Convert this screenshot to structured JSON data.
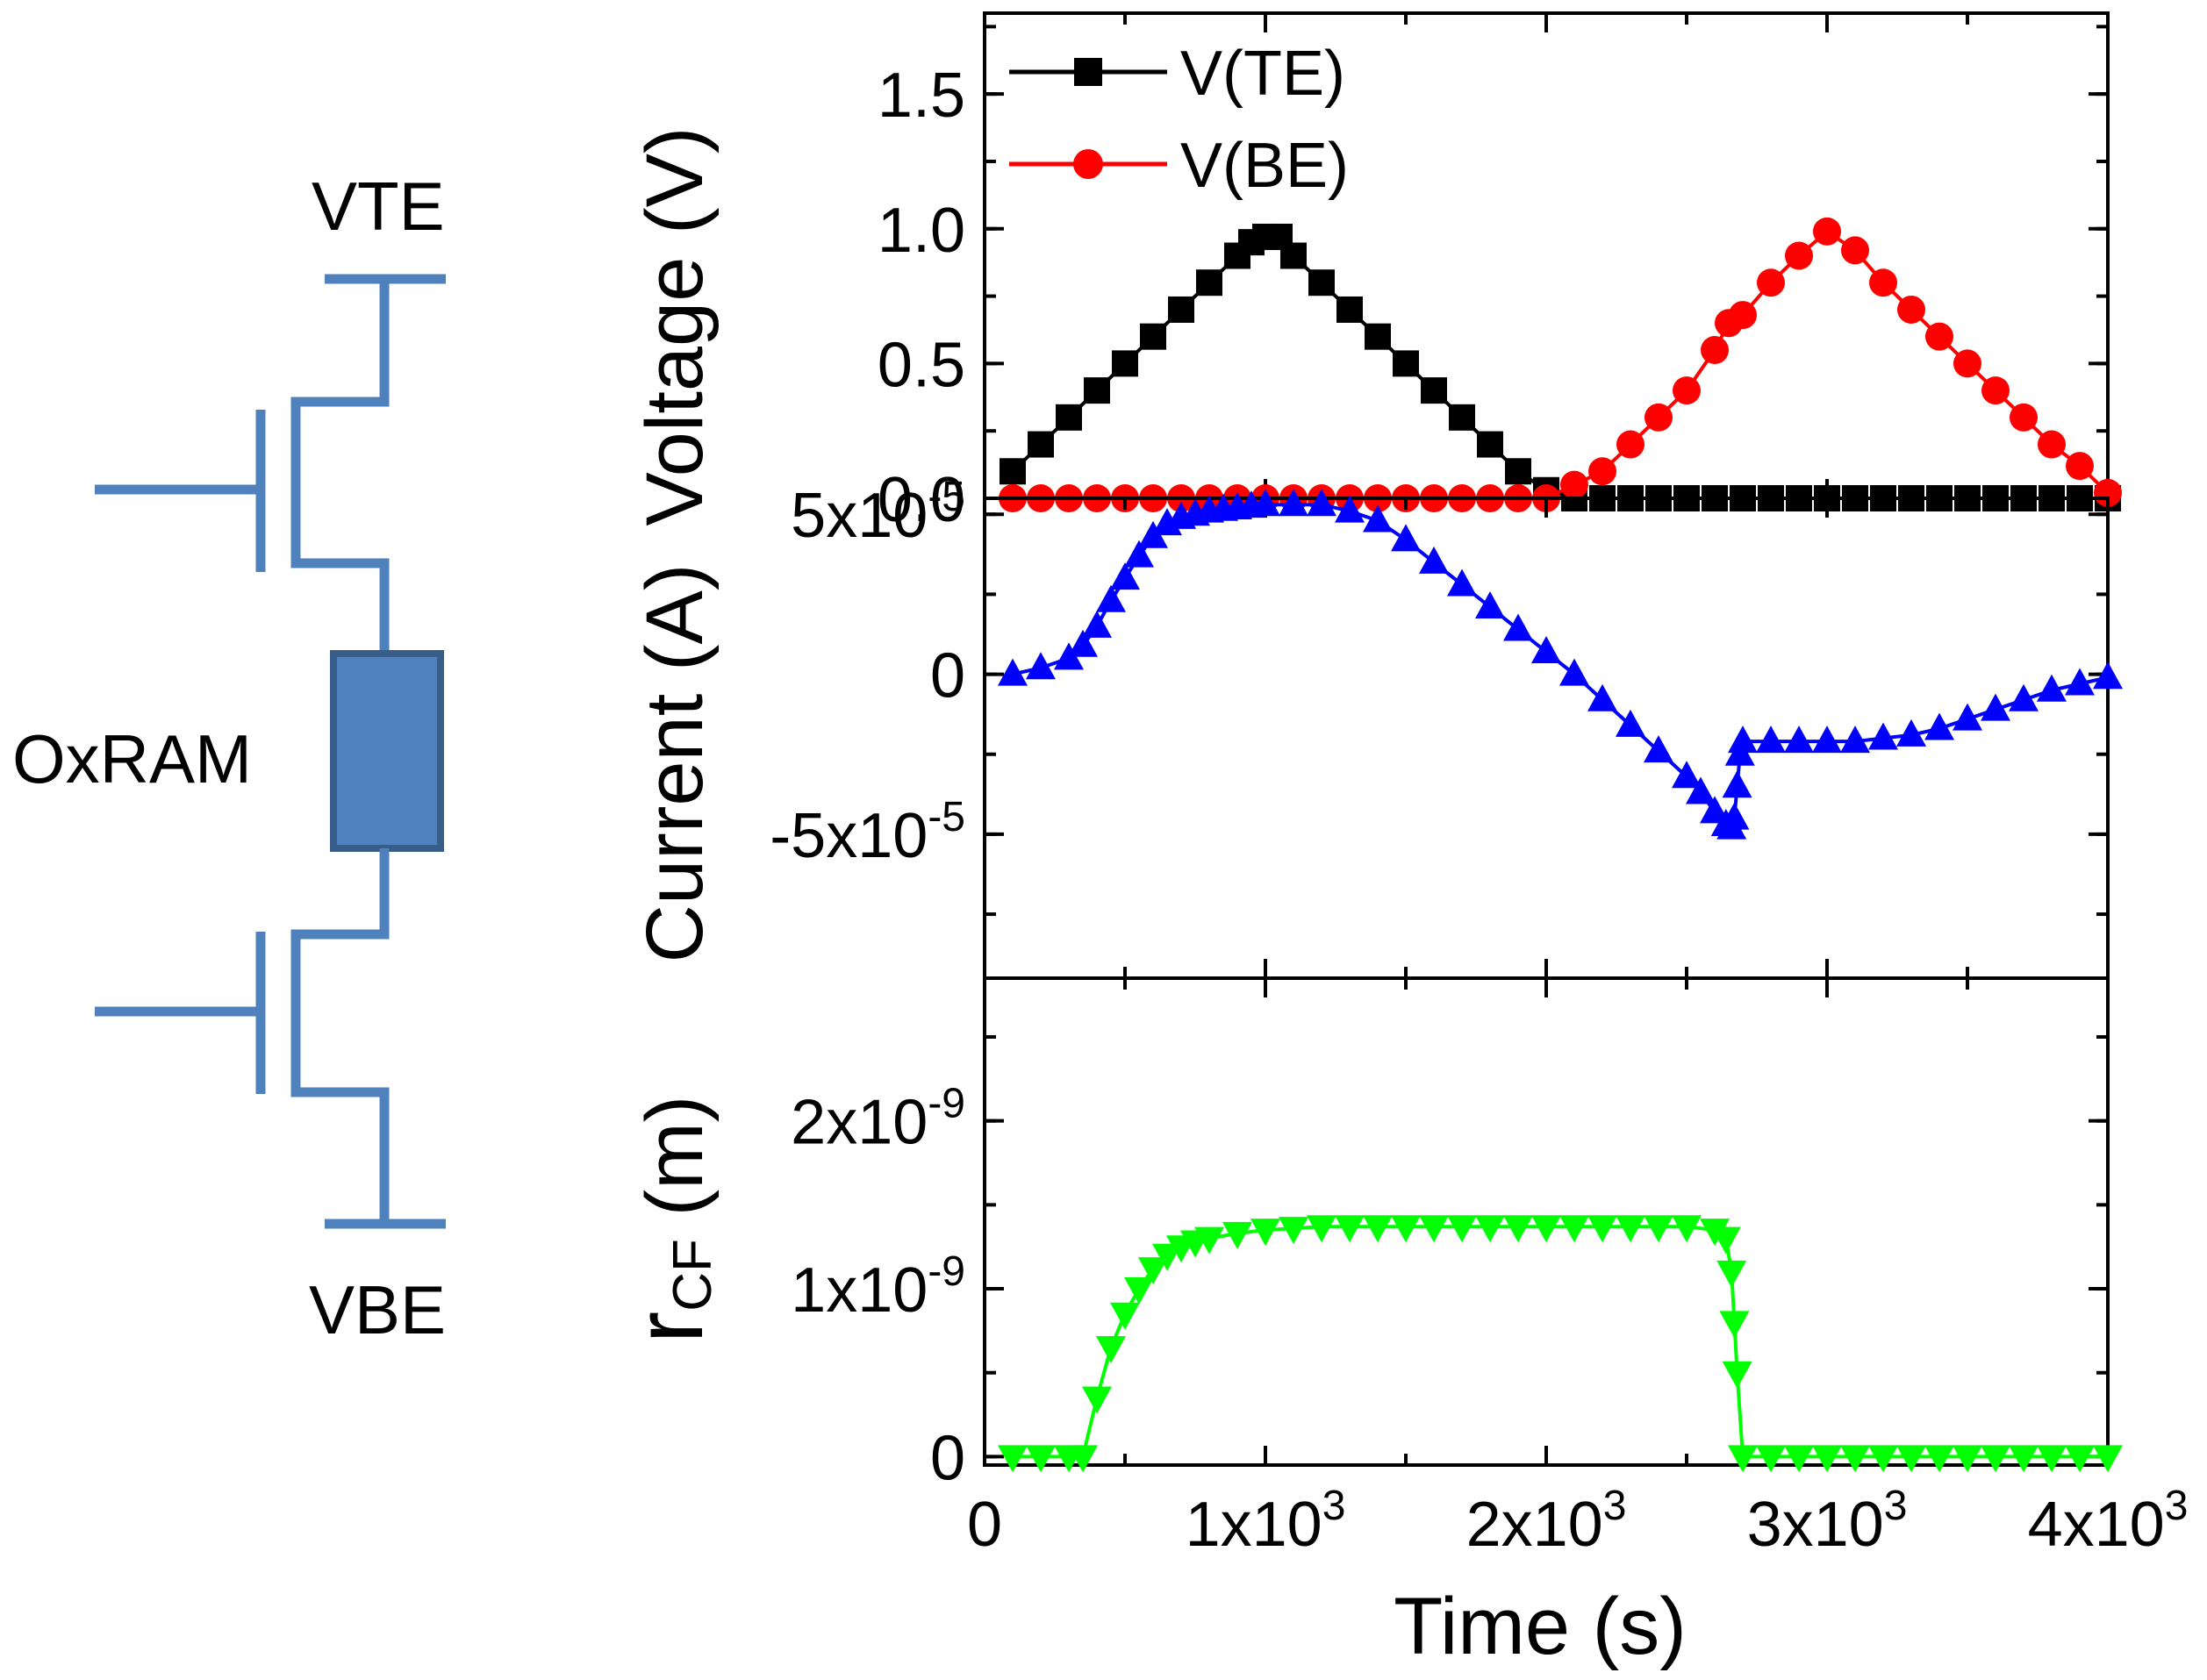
{
  "circuit": {
    "vte_label": "VTE",
    "vbe_label": "VBE",
    "device_label": "OxRAM",
    "wire_color": "#4f81bd",
    "device_fill": "#4f81bd",
    "device_stroke": "#385d8a"
  },
  "chart_data": [
    {
      "type": "line",
      "panel": "voltage",
      "ylabel": "Voltage (V)",
      "ylim": [
        0,
        1.8
      ],
      "yticks": [
        0.0,
        0.5,
        1.0,
        1.5
      ],
      "ytick_labels": [
        "0.0",
        "0.5",
        "1.0",
        "1.5"
      ],
      "xlim": [
        0,
        4000
      ],
      "legend": {
        "position": "top-left"
      },
      "series": [
        {
          "name": "V(TE)",
          "color": "#000000",
          "marker": "square",
          "x": [
            100,
            200,
            300,
            400,
            500,
            600,
            700,
            800,
            900,
            950,
            1000,
            1050,
            1100,
            1200,
            1300,
            1400,
            1500,
            1600,
            1700,
            1800,
            1900,
            2000,
            2100,
            2200,
            2300,
            2400,
            2500,
            2600,
            2700,
            2800,
            2900,
            3000,
            3100,
            3200,
            3300,
            3400,
            3500,
            3600,
            3700,
            3800,
            3900,
            4000
          ],
          "y": [
            0.1,
            0.2,
            0.3,
            0.4,
            0.5,
            0.6,
            0.7,
            0.8,
            0.9,
            0.95,
            0.97,
            0.97,
            0.9,
            0.8,
            0.7,
            0.6,
            0.5,
            0.4,
            0.3,
            0.2,
            0.1,
            0.03,
            0,
            0,
            0,
            0,
            0,
            0,
            0,
            0,
            0,
            0,
            0,
            0,
            0,
            0,
            0,
            0,
            0,
            0,
            0,
            0
          ]
        },
        {
          "name": "V(BE)",
          "color": "#ff0000",
          "marker": "circle",
          "x": [
            100,
            200,
            300,
            400,
            500,
            600,
            700,
            800,
            900,
            1000,
            1100,
            1200,
            1300,
            1400,
            1500,
            1600,
            1700,
            1800,
            1900,
            2000,
            2100,
            2200,
            2300,
            2400,
            2500,
            2600,
            2650,
            2700,
            2800,
            2900,
            3000,
            3100,
            3200,
            3300,
            3400,
            3500,
            3600,
            3700,
            3800,
            3900,
            4000
          ],
          "y": [
            0,
            0,
            0,
            0,
            0,
            0,
            0,
            0,
            0,
            0,
            0,
            0,
            0,
            0,
            0,
            0,
            0,
            0,
            0,
            0,
            0.05,
            0.1,
            0.2,
            0.3,
            0.4,
            0.55,
            0.65,
            0.68,
            0.8,
            0.9,
            0.99,
            0.92,
            0.8,
            0.7,
            0.6,
            0.5,
            0.4,
            0.3,
            0.2,
            0.12,
            0.02
          ]
        }
      ]
    },
    {
      "type": "line",
      "panel": "current",
      "ylabel": "Current (A)",
      "ylim": [
        -9.5e-05,
        5.5e-05
      ],
      "yticks": [
        5e-05,
        0,
        -5e-05
      ],
      "ytick_labels": [
        {
          "base": "5x10",
          "exp": "-5"
        },
        {
          "base": "0",
          "exp": ""
        },
        {
          "base": "-5x10",
          "exp": "-5"
        }
      ],
      "xlim": [
        0,
        4000
      ],
      "series": [
        {
          "name": "Current",
          "color": "#0000ff",
          "marker": "triangle-up",
          "x": [
            100,
            200,
            300,
            350,
            400,
            450,
            500,
            550,
            600,
            650,
            700,
            750,
            800,
            850,
            900,
            950,
            1000,
            1100,
            1200,
            1300,
            1400,
            1500,
            1600,
            1700,
            1800,
            1900,
            2000,
            2100,
            2200,
            2300,
            2400,
            2500,
            2550,
            2600,
            2640,
            2660,
            2670,
            2680,
            2690,
            2700,
            2800,
            2900,
            3000,
            3100,
            3200,
            3300,
            3400,
            3500,
            3600,
            3700,
            3800,
            3900,
            4000
          ],
          "y": [
            0,
            2e-06,
            5e-06,
            9e-06,
            1.5e-05,
            2.3e-05,
            3e-05,
            3.7e-05,
            4.3e-05,
            4.7e-05,
            4.9e-05,
            5e-05,
            5.1e-05,
            5.15e-05,
            5.2e-05,
            5.25e-05,
            5.3e-05,
            5.3e-05,
            5.3e-05,
            5.1e-05,
            4.8e-05,
            4.2e-05,
            3.5e-05,
            2.8e-05,
            2.1e-05,
            1.4e-05,
            7e-06,
            0,
            -8e-06,
            -1.6e-05,
            -2.4e-05,
            -3.2e-05,
            -3.7e-05,
            -4.3e-05,
            -4.7e-05,
            -4.8e-05,
            -4.5e-05,
            -3.5e-05,
            -2.5e-05,
            -2.1e-05,
            -2.1e-05,
            -2.1e-05,
            -2.1e-05,
            -2.1e-05,
            -2e-05,
            -1.9e-05,
            -1.7e-05,
            -1.4e-05,
            -1.1e-05,
            -8e-06,
            -5e-06,
            -3e-06,
            -1e-06
          ]
        }
      ]
    },
    {
      "type": "line",
      "panel": "radius",
      "ylabel_main": "r",
      "ylabel_sub": "CF",
      "ylabel_unit": " (m)",
      "ylim": [
        -5e-11,
        2.85e-09
      ],
      "yticks": [
        2e-09,
        1e-09,
        0
      ],
      "ytick_labels": [
        {
          "base": "2x10",
          "exp": "-9"
        },
        {
          "base": "1x10",
          "exp": "-9"
        },
        {
          "base": "0",
          "exp": ""
        }
      ],
      "xlabel": "Time (s)",
      "xlim": [
        0,
        4000
      ],
      "xticks": [
        0,
        1000,
        2000,
        3000,
        4000
      ],
      "xtick_labels": [
        {
          "base": "0",
          "exp": ""
        },
        {
          "base": "1x10",
          "exp": "3"
        },
        {
          "base": "2x10",
          "exp": "3"
        },
        {
          "base": "3x10",
          "exp": "3"
        },
        {
          "base": "4x10",
          "exp": "3"
        }
      ],
      "series": [
        {
          "name": "rCF",
          "color": "#00ff00",
          "marker": "triangle-down",
          "x": [
            100,
            200,
            300,
            350,
            400,
            450,
            500,
            550,
            600,
            650,
            700,
            750,
            800,
            900,
            1000,
            1100,
            1200,
            1300,
            1400,
            1500,
            1600,
            1700,
            1800,
            1900,
            2000,
            2100,
            2200,
            2300,
            2400,
            2500,
            2600,
            2640,
            2660,
            2670,
            2680,
            2700,
            2800,
            2900,
            3000,
            3100,
            3200,
            3300,
            3400,
            3500,
            3600,
            3700,
            3800,
            3900,
            4000
          ],
          "y": [
            0,
            0,
            0,
            0,
            3.5e-10,
            6.5e-10,
            8.5e-10,
            1e-09,
            1.12e-09,
            1.2e-09,
            1.25e-09,
            1.28e-09,
            1.3e-09,
            1.33e-09,
            1.35e-09,
            1.36e-09,
            1.37e-09,
            1.37e-09,
            1.37e-09,
            1.37e-09,
            1.37e-09,
            1.37e-09,
            1.37e-09,
            1.37e-09,
            1.37e-09,
            1.37e-09,
            1.37e-09,
            1.37e-09,
            1.37e-09,
            1.37e-09,
            1.35e-09,
            1.3e-09,
            1.1e-09,
            8e-10,
            5e-10,
            0,
            0,
            0,
            0,
            0,
            0,
            0,
            0,
            0,
            0,
            0,
            0,
            0,
            0
          ]
        }
      ]
    }
  ]
}
